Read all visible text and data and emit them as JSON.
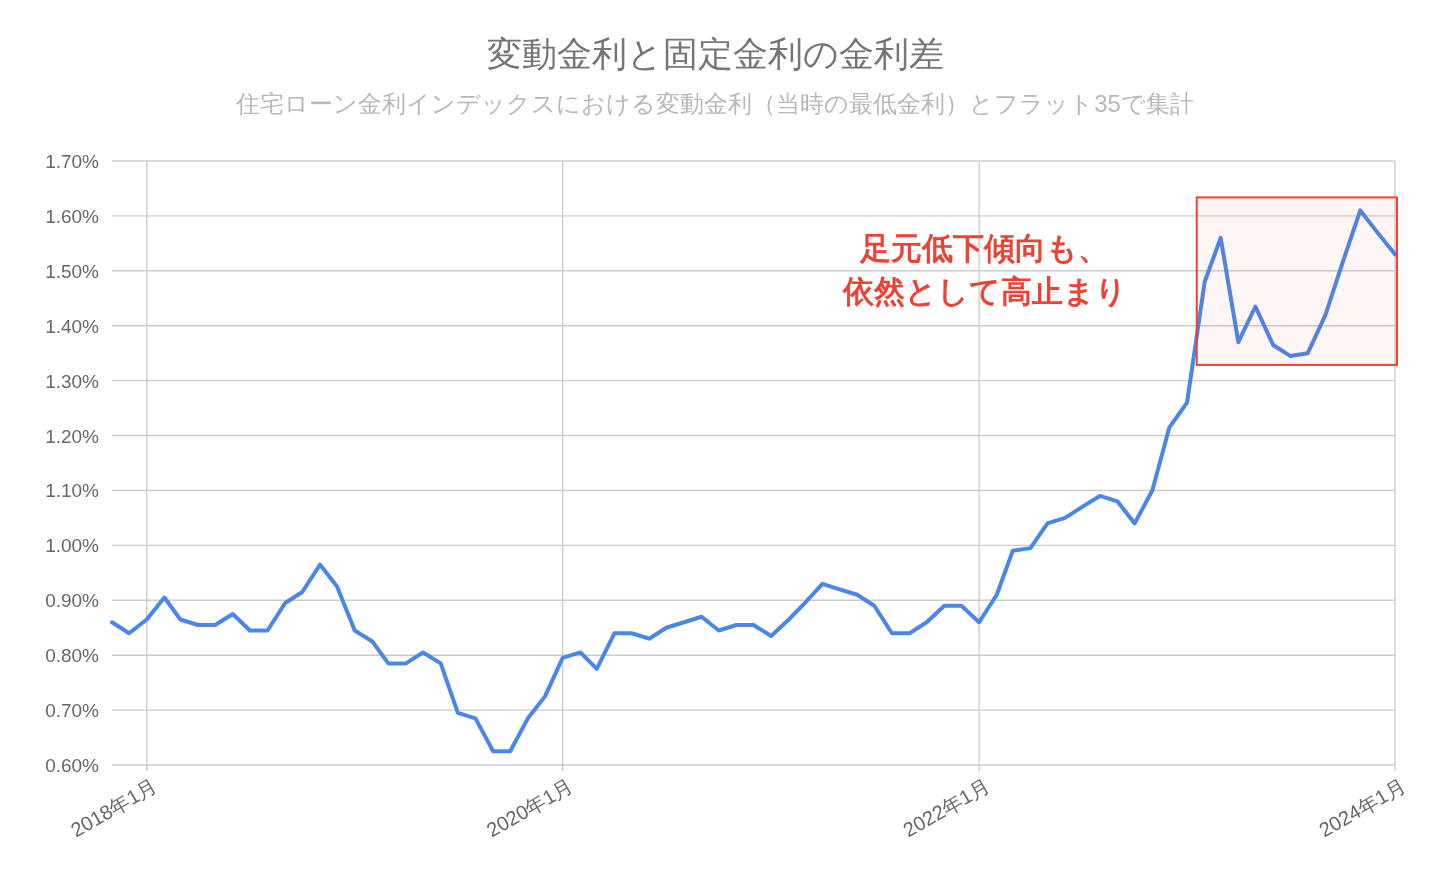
{
  "chart_data": {
    "type": "line",
    "title": "変動金利と固定金利の金利差",
    "subtitle": "住宅ローン金利インデックスにおける変動金利（当時の最低金利）とフラット35で集計",
    "x": [
      "2017-11",
      "2017-12",
      "2018-01",
      "2018-02",
      "2018-03",
      "2018-04",
      "2018-05",
      "2018-06",
      "2018-07",
      "2018-08",
      "2018-09",
      "2018-10",
      "2018-11",
      "2018-12",
      "2019-01",
      "2019-02",
      "2019-03",
      "2019-04",
      "2019-05",
      "2019-06",
      "2019-07",
      "2019-08",
      "2019-09",
      "2019-10",
      "2019-11",
      "2019-12",
      "2020-01",
      "2020-02",
      "2020-03",
      "2020-04",
      "2020-05",
      "2020-06",
      "2020-07",
      "2020-08",
      "2020-09",
      "2020-10",
      "2020-11",
      "2020-12",
      "2021-01",
      "2021-02",
      "2021-03",
      "2021-04",
      "2021-05",
      "2021-06",
      "2021-07",
      "2021-08",
      "2021-09",
      "2021-10",
      "2021-11",
      "2021-12",
      "2022-01",
      "2022-02",
      "2022-03",
      "2022-04",
      "2022-05",
      "2022-06",
      "2022-07",
      "2022-08",
      "2022-09",
      "2022-10",
      "2022-11",
      "2022-12",
      "2023-01",
      "2023-02",
      "2023-03",
      "2023-04",
      "2023-05",
      "2023-06",
      "2023-07",
      "2023-08",
      "2023-09",
      "2023-10",
      "2023-11",
      "2023-12",
      "2024-01"
    ],
    "series": [
      {
        "color": "#4a86e8",
        "values": [
          0.86,
          0.84,
          0.865,
          0.905,
          0.865,
          0.855,
          0.855,
          0.875,
          0.845,
          0.845,
          0.895,
          0.915,
          0.965,
          0.925,
          0.845,
          0.825,
          0.785,
          0.785,
          0.805,
          0.785,
          0.695,
          0.685,
          0.625,
          0.625,
          0.685,
          0.725,
          0.795,
          0.805,
          0.775,
          0.84,
          0.84,
          0.83,
          0.85,
          0.86,
          0.87,
          0.845,
          0.855,
          0.855,
          0.835,
          0.865,
          0.895,
          0.93,
          0.92,
          0.91,
          0.89,
          0.84,
          0.84,
          0.86,
          0.89,
          0.89,
          0.86,
          0.91,
          0.99,
          0.995,
          1.04,
          1.05,
          1.07,
          1.09,
          1.08,
          1.04,
          1.1,
          1.215,
          1.26,
          1.48,
          1.56,
          1.37,
          1.435,
          1.365,
          1.345,
          1.35,
          1.42,
          1.515,
          1.61,
          1.57,
          1.53
        ]
      }
    ],
    "xlim": [
      "2017-11",
      "2024-01"
    ],
    "xticks": [
      {
        "value": "2018-01",
        "label": "2018年1月"
      },
      {
        "value": "2020-01",
        "label": "2020年1月"
      },
      {
        "value": "2022-01",
        "label": "2022年1月"
      },
      {
        "value": "2024-01",
        "label": "2024年1月"
      }
    ],
    "ylim": [
      0.6,
      1.7
    ],
    "yticks": [
      {
        "value": 0.6,
        "label": "0.60%"
      },
      {
        "value": 0.7,
        "label": "0.70%"
      },
      {
        "value": 0.8,
        "label": "0.80%"
      },
      {
        "value": 0.9,
        "label": "0.90%"
      },
      {
        "value": 1.0,
        "label": "1.00%"
      },
      {
        "value": 1.1,
        "label": "1.10%"
      },
      {
        "value": 1.2,
        "label": "1.20%"
      },
      {
        "value": 1.3,
        "label": "1.30%"
      },
      {
        "value": 1.4,
        "label": "1.40%"
      },
      {
        "value": 1.5,
        "label": "1.50%"
      },
      {
        "value": 1.6,
        "label": "1.60%"
      },
      {
        "value": 1.7,
        "label": "1.70%"
      }
    ],
    "grid": true,
    "bands": [
      {
        "axis": "x",
        "from": "2023-01-18",
        "to": "2024-01",
        "label": "足元低下傾向も、依然として高止まり",
        "color": "#ea4335"
      }
    ]
  }
}
